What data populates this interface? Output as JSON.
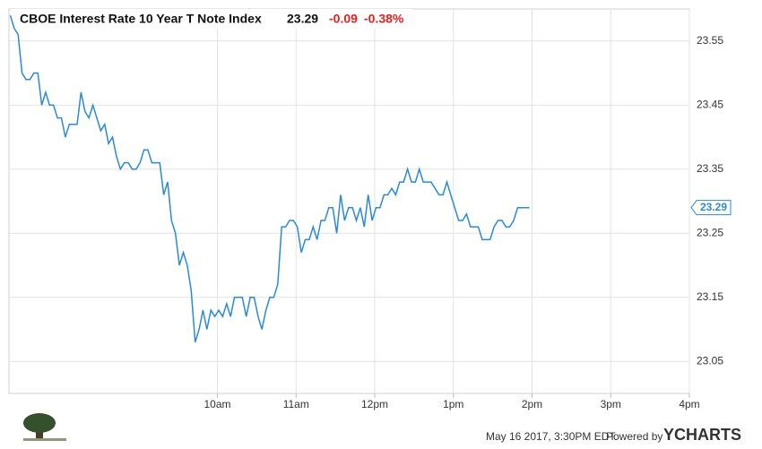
{
  "chart_data": {
    "type": "line",
    "title": "CBOE Interest Rate 10 Year T Note Index",
    "price": 23.29,
    "change": "-0.09",
    "change_percent": "-0.38%",
    "color": "#2a8ad6",
    "x": [
      442,
      445,
      448,
      451,
      454,
      457,
      460,
      463,
      466,
      469,
      472,
      475,
      478,
      481,
      484,
      487,
      490,
      493,
      496,
      499,
      502,
      505,
      508,
      511,
      514,
      517,
      520,
      523,
      526,
      529,
      532,
      535,
      538,
      541,
      544,
      547,
      550,
      553,
      556,
      559,
      562,
      565,
      568,
      571,
      574,
      577,
      580,
      583,
      586,
      589,
      592,
      595,
      598,
      601,
      604,
      607,
      610,
      613,
      616,
      619,
      622,
      625,
      628,
      631,
      634,
      637,
      640,
      643,
      646,
      649,
      652,
      655,
      658,
      661,
      664,
      667,
      670,
      673,
      676,
      679,
      682,
      685,
      688,
      691,
      694,
      697,
      700,
      703,
      706,
      709,
      712,
      715,
      718,
      721,
      724,
      727,
      730,
      733,
      736,
      739,
      742,
      745,
      748,
      751,
      754,
      757,
      760,
      763,
      766,
      769,
      772,
      775,
      778,
      781,
      784,
      787,
      790,
      793,
      796,
      799,
      802,
      805,
      808,
      811,
      814,
      817,
      820,
      823,
      826,
      829,
      832,
      835,
      838
    ],
    "values": [
      23.59,
      23.57,
      23.56,
      23.5,
      23.49,
      23.49,
      23.5,
      23.5,
      23.45,
      23.47,
      23.45,
      23.45,
      23.43,
      23.43,
      23.4,
      23.42,
      23.42,
      23.42,
      23.47,
      23.44,
      23.43,
      23.45,
      23.43,
      23.41,
      23.42,
      23.39,
      23.4,
      23.37,
      23.35,
      23.36,
      23.36,
      23.35,
      23.35,
      23.36,
      23.38,
      23.38,
      23.36,
      23.36,
      23.36,
      23.31,
      23.33,
      23.27,
      23.25,
      23.2,
      23.22,
      23.2,
      23.16,
      23.08,
      23.1,
      23.13,
      23.1,
      23.13,
      23.12,
      23.13,
      23.12,
      23.14,
      23.12,
      23.15,
      23.15,
      23.15,
      23.12,
      23.15,
      23.15,
      23.12,
      23.1,
      23.13,
      23.15,
      23.15,
      23.17,
      23.26,
      23.26,
      23.27,
      23.27,
      23.26,
      23.22,
      23.24,
      23.24,
      23.26,
      23.24,
      23.27,
      23.27,
      23.29,
      23.29,
      23.25,
      23.31,
      23.27,
      23.29,
      23.29,
      23.27,
      23.29,
      23.26,
      23.31,
      23.27,
      23.29,
      23.29,
      23.31,
      23.31,
      23.32,
      23.31,
      23.33,
      23.33,
      23.35,
      23.33,
      23.33,
      23.35,
      23.33,
      23.33,
      23.33,
      23.32,
      23.31,
      23.31,
      23.33,
      23.31,
      23.29,
      23.27,
      23.27,
      23.28,
      23.26,
      23.26,
      23.26,
      23.24,
      23.24,
      23.24,
      23.26,
      23.27,
      23.27,
      23.26,
      23.26,
      23.27,
      23.29,
      23.29,
      23.29,
      23.29
    ],
    "xlim": [
      441,
      960
    ],
    "xticks": [
      {
        "value": 600,
        "label": "10am"
      },
      {
        "value": 660,
        "label": "11am"
      },
      {
        "value": 720,
        "label": "12pm"
      },
      {
        "value": 780,
        "label": "1pm"
      },
      {
        "value": 840,
        "label": "2pm"
      },
      {
        "value": 900,
        "label": "3pm"
      },
      {
        "value": 960,
        "label": "4pm"
      }
    ],
    "ylim": [
      23.0,
      23.6
    ],
    "yticks": [
      23.05,
      23.15,
      23.25,
      23.35,
      23.45,
      23.55
    ],
    "grid": true,
    "footer": {
      "timestamp": "May 16 2017, 3:30PM EDT.",
      "powered": "Powered by",
      "brand": "YCHARTS"
    }
  }
}
